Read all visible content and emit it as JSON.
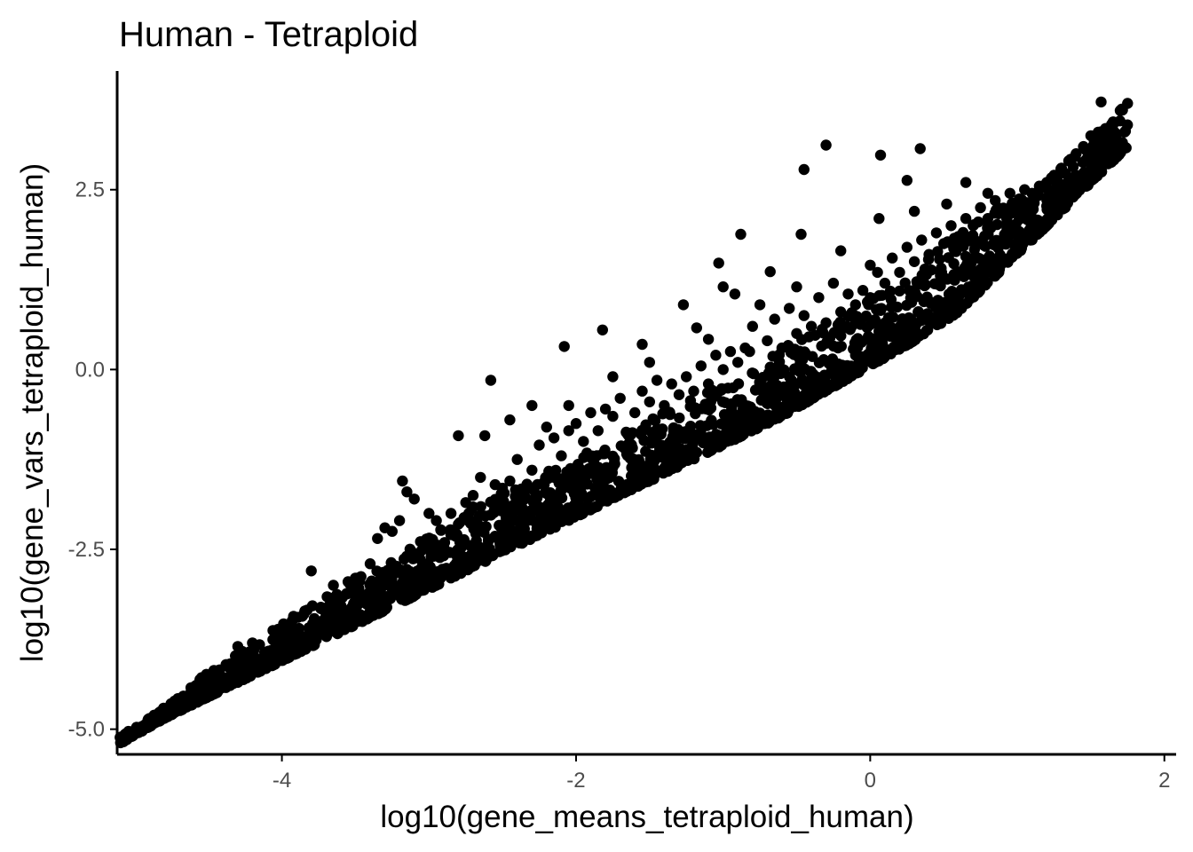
{
  "chart_data": {
    "type": "scatter",
    "title": "Human - Tetraploid",
    "xlabel": "log10(gene_means_tetraploid_human)",
    "ylabel": "log10(gene_vars_tetraploid_human)",
    "xlim": [
      -5.12,
      2.08
    ],
    "ylim": [
      -5.35,
      4.15
    ],
    "xticks": [
      -4,
      -2,
      0,
      2
    ],
    "xtick_labels": [
      "-4",
      "-2",
      "0",
      "2"
    ],
    "yticks": [
      -5.0,
      -2.5,
      0.0,
      2.5
    ],
    "ytick_labels": [
      "-5.0",
      "-2.5",
      "0.0",
      "2.5"
    ],
    "grid": false,
    "legend": "none",
    "point_color": "#000000",
    "main_trend": {
      "description": "dense band of genes along variance ≈ mean relationship",
      "x": [
        -5.1,
        -4.8,
        -4.5,
        -4.2,
        -3.9,
        -3.6,
        -3.3,
        -3.0,
        -2.7,
        -2.4,
        -2.1,
        -1.8,
        -1.5,
        -1.2,
        -0.9,
        -0.6,
        -0.3,
        0.0,
        0.3,
        0.6,
        0.9,
        1.2,
        1.5,
        1.75
      ],
      "y_lower": [
        -5.2,
        -4.85,
        -4.55,
        -4.25,
        -3.95,
        -3.65,
        -3.35,
        -3.05,
        -2.75,
        -2.45,
        -2.15,
        -1.85,
        -1.55,
        -1.25,
        -0.95,
        -0.65,
        -0.3,
        0.05,
        0.4,
        0.8,
        1.4,
        2.0,
        2.6,
        3.1
      ],
      "y_upper": [
        -5.1,
        -4.7,
        -4.2,
        -3.8,
        -3.4,
        -3.0,
        -2.7,
        -2.3,
        -1.9,
        -1.6,
        -1.3,
        -1.0,
        -0.7,
        -0.4,
        -0.1,
        0.3,
        0.6,
        1.0,
        1.4,
        1.9,
        2.3,
        2.6,
        3.2,
        3.7
      ]
    },
    "points": [
      [
        -4.8,
        -4.82
      ],
      [
        -4.5,
        -4.52
      ],
      [
        -4.5,
        -4.25
      ],
      [
        -4.3,
        -4.35
      ],
      [
        -4.3,
        -4.05
      ],
      [
        -4.3,
        -3.85
      ],
      [
        -4.2,
        -4.22
      ],
      [
        -4.2,
        -4.05
      ],
      [
        -4.2,
        -3.8
      ],
      [
        -4.1,
        -4.0
      ],
      [
        -4.05,
        -3.9
      ],
      [
        -3.95,
        -3.8
      ],
      [
        -3.85,
        -3.4
      ],
      [
        -3.8,
        -2.8
      ],
      [
        -3.75,
        -3.6
      ],
      [
        -3.7,
        -3.4
      ],
      [
        -3.65,
        -3.0
      ],
      [
        -3.6,
        -3.3
      ],
      [
        -3.55,
        -2.95
      ],
      [
        -3.5,
        -2.9
      ],
      [
        -3.45,
        -3.15
      ],
      [
        -3.4,
        -2.7
      ],
      [
        -3.35,
        -2.35
      ],
      [
        -3.3,
        -2.2
      ],
      [
        -3.25,
        -2.25
      ],
      [
        -3.2,
        -2.1
      ],
      [
        -3.18,
        -1.55
      ],
      [
        -3.15,
        -1.7
      ],
      [
        -3.1,
        -1.8
      ],
      [
        -3.05,
        -2.4
      ],
      [
        -3.0,
        -2.0
      ],
      [
        -2.95,
        -2.1
      ],
      [
        -2.9,
        -2.5
      ],
      [
        -2.85,
        -2.0
      ],
      [
        -2.8,
        -2.15
      ],
      [
        -2.75,
        -1.85
      ],
      [
        -2.7,
        -1.75
      ],
      [
        -2.65,
        -1.5
      ],
      [
        -2.62,
        -0.92
      ],
      [
        -2.55,
        -1.6
      ],
      [
        -2.5,
        -1.65
      ],
      [
        -2.45,
        -1.55
      ],
      [
        -2.4,
        -1.25
      ],
      [
        -2.35,
        -1.7
      ],
      [
        -2.3,
        -1.4
      ],
      [
        -2.25,
        -1.05
      ],
      [
        -2.2,
        -0.8
      ],
      [
        -2.15,
        -0.95
      ],
      [
        -2.1,
        -1.2
      ],
      [
        -2.05,
        -0.85
      ],
      [
        -2.0,
        -0.75
      ],
      [
        -1.95,
        -1.0
      ],
      [
        -1.9,
        -0.6
      ],
      [
        -1.85,
        -0.85
      ],
      [
        -1.8,
        -0.55
      ],
      [
        -1.75,
        -0.65
      ],
      [
        -1.7,
        -0.4
      ],
      [
        -1.65,
        -0.9
      ],
      [
        -1.6,
        -0.6
      ],
      [
        -1.55,
        -0.3
      ],
      [
        -1.5,
        -0.45
      ],
      [
        -1.45,
        -0.15
      ],
      [
        -1.4,
        -0.5
      ],
      [
        -1.35,
        -0.2
      ],
      [
        -1.3,
        -0.35
      ],
      [
        -1.25,
        -0.1
      ],
      [
        -1.2,
        -0.3
      ],
      [
        -1.15,
        0.05
      ],
      [
        -1.1,
        -0.2
      ],
      [
        -1.05,
        0.2
      ],
      [
        -1.0,
        0.0
      ],
      [
        -0.95,
        0.25
      ],
      [
        -0.9,
        0.1
      ],
      [
        -0.85,
        0.3
      ],
      [
        -0.8,
        0.6
      ],
      [
        -0.75,
        0.9
      ],
      [
        -0.7,
        0.4
      ],
      [
        -0.65,
        0.7
      ],
      [
        -0.6,
        0.3
      ],
      [
        -0.55,
        0.85
      ],
      [
        -0.5,
        0.5
      ],
      [
        -0.45,
        0.75
      ],
      [
        -0.4,
        0.6
      ],
      [
        -0.35,
        1.0
      ],
      [
        -0.3,
        0.65
      ],
      [
        -0.25,
        1.2
      ],
      [
        -0.2,
        0.8
      ],
      [
        -0.15,
        1.05
      ],
      [
        -0.1,
        0.9
      ],
      [
        -0.05,
        1.1
      ],
      [
        0.0,
        1.0
      ],
      [
        0.05,
        1.35
      ],
      [
        0.1,
        1.2
      ],
      [
        0.15,
        1.55
      ],
      [
        0.2,
        1.35
      ],
      [
        0.25,
        1.7
      ],
      [
        0.3,
        1.5
      ],
      [
        0.35,
        1.8
      ],
      [
        0.4,
        1.6
      ],
      [
        0.45,
        1.9
      ],
      [
        0.5,
        1.75
      ],
      [
        0.55,
        2.0
      ],
      [
        0.6,
        1.85
      ],
      [
        0.65,
        2.1
      ],
      [
        0.7,
        2.0
      ],
      [
        0.75,
        2.25
      ],
      [
        0.8,
        2.1
      ],
      [
        0.85,
        2.35
      ],
      [
        0.9,
        2.2
      ],
      [
        0.95,
        2.45
      ],
      [
        1.0,
        2.3
      ],
      [
        1.05,
        2.5
      ],
      [
        1.1,
        2.45
      ],
      [
        1.15,
        2.55
      ],
      [
        1.2,
        2.6
      ],
      [
        1.25,
        2.7
      ],
      [
        1.3,
        2.8
      ],
      [
        1.35,
        2.9
      ],
      [
        1.4,
        3.0
      ],
      [
        1.45,
        3.1
      ],
      [
        1.5,
        3.25
      ],
      [
        1.55,
        3.3
      ],
      [
        1.6,
        3.35
      ],
      [
        1.65,
        3.4
      ],
      [
        1.7,
        3.6
      ],
      [
        1.75,
        3.7
      ],
      [
        1.57,
        3.72
      ],
      [
        -0.3,
        3.12
      ],
      [
        0.07,
        2.98
      ],
      [
        0.34,
        3.07
      ],
      [
        -0.45,
        2.78
      ],
      [
        0.25,
        2.63
      ],
      [
        0.06,
        2.1
      ],
      [
        -0.88,
        1.88
      ],
      [
        -0.47,
        1.88
      ],
      [
        -1.03,
        1.48
      ],
      [
        -0.68,
        1.36
      ],
      [
        -1.27,
        0.9
      ],
      [
        -1.0,
        1.15
      ],
      [
        -0.92,
        1.05
      ],
      [
        -1.82,
        0.55
      ],
      [
        -2.08,
        0.32
      ],
      [
        -2.58,
        -0.15
      ],
      [
        -2.8,
        -0.92
      ],
      [
        -1.18,
        0.58
      ],
      [
        -1.1,
        0.42
      ],
      [
        -0.1,
        0.2
      ],
      [
        -0.62,
        0.05
      ],
      [
        -1.75,
        -0.1
      ],
      [
        -2.3,
        -0.5
      ],
      [
        -2.45,
        -0.7
      ],
      [
        -2.05,
        -0.5
      ],
      [
        -1.55,
        0.35
      ],
      [
        -0.82,
        0.25
      ],
      [
        0.65,
        2.6
      ],
      [
        0.8,
        2.45
      ],
      [
        0.3,
        2.2
      ],
      [
        0.52,
        2.3
      ],
      [
        -0.2,
        1.65
      ],
      [
        0.0,
        1.45
      ],
      [
        -0.5,
        1.15
      ],
      [
        -1.5,
        0.1
      ]
    ]
  }
}
